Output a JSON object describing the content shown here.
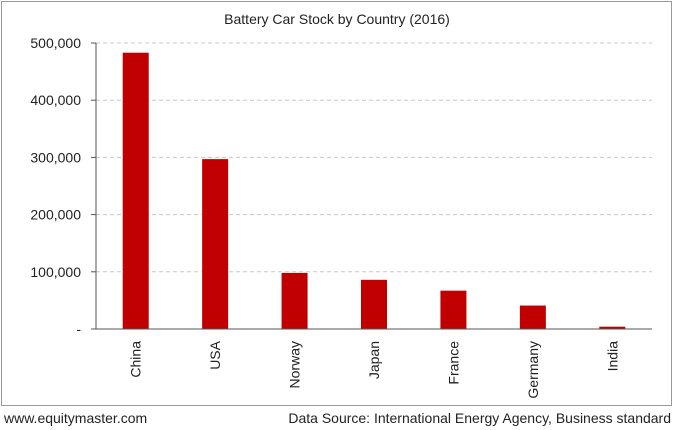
{
  "footer": {
    "website": "www.equitymaster.com",
    "source": "Data Source: International Energy Agency, Business standard"
  },
  "chart_data": {
    "type": "bar",
    "title": "Battery Car Stock by Country (2016)",
    "xlabel": "",
    "ylabel": "",
    "categories": [
      "China",
      "USA",
      "Norway",
      "Japan",
      "France",
      "Germany",
      "India"
    ],
    "values": [
      483000,
      297000,
      98000,
      86000,
      67000,
      41000,
      4000
    ],
    "ylim": [
      0,
      500000
    ],
    "yticks": [
      0,
      100000,
      200000,
      300000,
      400000,
      500000
    ],
    "ytick_labels": [
      "-",
      "100,000",
      "200,000",
      "300,000",
      "400,000",
      "500,000"
    ],
    "bar_color": "#c00000",
    "grid": true,
    "legend": "none"
  }
}
